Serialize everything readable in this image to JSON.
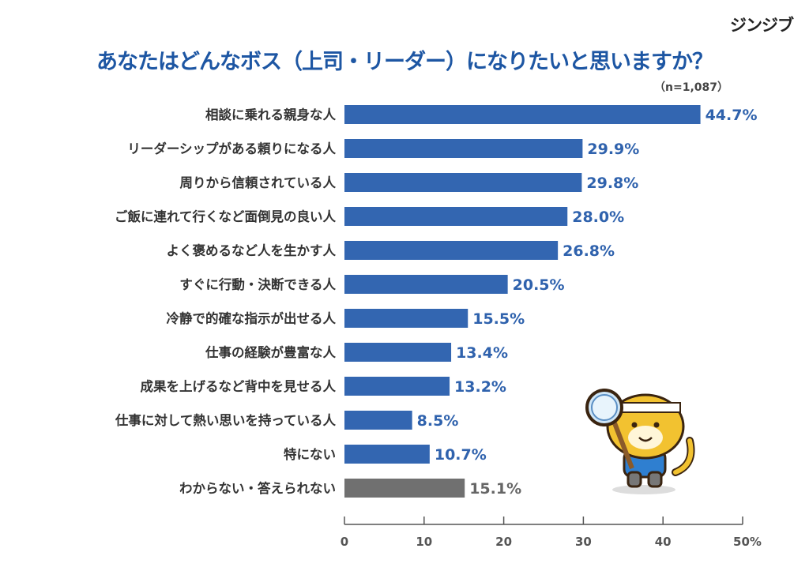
{
  "brand": "ジンジブ",
  "chart_data": {
    "type": "bar",
    "orientation": "horizontal",
    "title": "あなたはどんなボス（上司・リーダー）になりたいと思いますか？",
    "sample_size": "（n=1,087）",
    "categories": [
      "相談に乗れる親身な人",
      "リーダーシップがある頼りになる人",
      "周りから信頼されている人",
      "ご飯に連れて行くなど面倒見の良い人",
      "よく褒めるなど人を生かす人",
      "すぐに行動・決断できる人",
      "冷静で的確な指示が出せる人",
      "仕事の経験が豊富な人",
      "成果を上げるなど背中を見せる人",
      "仕事に対して熱い思いを持っている人",
      "特にない",
      "わからない・答えられない"
    ],
    "values": [
      44.7,
      29.9,
      29.8,
      28.0,
      26.8,
      20.5,
      15.5,
      13.4,
      13.2,
      8.5,
      10.7,
      15.1
    ],
    "value_labels": [
      "44.7%",
      "29.9%",
      "29.8%",
      "28.0%",
      "26.8%",
      "20.5%",
      "15.5%",
      "13.4%",
      "13.2%",
      "8.5%",
      "10.7%",
      "15.1%"
    ],
    "bar_colors": [
      "#3366b1",
      "#3366b1",
      "#3366b1",
      "#3366b1",
      "#3366b1",
      "#3366b1",
      "#3366b1",
      "#3366b1",
      "#3366b1",
      "#3366b1",
      "#3366b1",
      "#707070"
    ],
    "label_colors": [
      "#2f62ad",
      "#2f62ad",
      "#2f62ad",
      "#2f62ad",
      "#2f62ad",
      "#2f62ad",
      "#2f62ad",
      "#2f62ad",
      "#2f62ad",
      "#2f62ad",
      "#2f62ad",
      "#666666"
    ],
    "xlim": [
      0,
      50
    ],
    "xticks": [
      0,
      10,
      20,
      30,
      40,
      50
    ],
    "xtick_labels": [
      "0",
      "10",
      "20",
      "30",
      "40",
      "50%"
    ],
    "xlabel": "",
    "ylabel": "",
    "grid": false,
    "legend": "none"
  }
}
